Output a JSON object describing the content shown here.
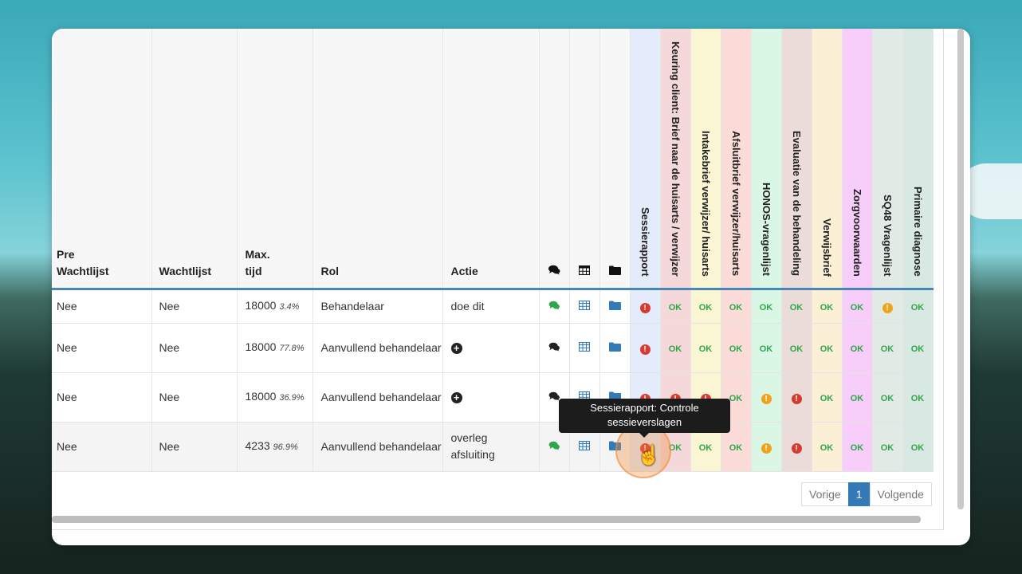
{
  "headers": {
    "pre_wachtlijst": "Pre Wachtlijst",
    "wachtlijst": "Wachtlijst",
    "max_tijd": "Max. tijd",
    "rol": "Rol",
    "actie": "Actie",
    "icons": [
      "comments-icon",
      "table-icon",
      "folder-icon"
    ],
    "checks": [
      {
        "label": "Sessierapport",
        "bg": "#e4ebfa"
      },
      {
        "label": "Keuring client: Brief naar de huisarts / verwijzer",
        "bg": "#f4d8da"
      },
      {
        "label": "Intakebrief verwijzer/ huisarts",
        "bg": "#faf6d3"
      },
      {
        "label": "Afsluitbrief verwijzer/huisarts",
        "bg": "#fbdcd9"
      },
      {
        "label": "HONOS-vragenlijst",
        "bg": "#d9f7e4"
      },
      {
        "label": "Evaluatie van de behandeling",
        "bg": "#ecdcd9"
      },
      {
        "label": "Verwijsbrief",
        "bg": "#fbefd6"
      },
      {
        "label": "Zorgvoorwaarden",
        "bg": "#f7cdfa"
      },
      {
        "label": "SQ48 Vragenlijst",
        "bg": "#e2eae6"
      },
      {
        "label": "Primaire diagnose",
        "bg": "#d8e8e2"
      }
    ]
  },
  "rows": [
    {
      "pre": "Nee",
      "wacht": "Nee",
      "tijd": "18000",
      "pct": "3.4%",
      "rol": "Behandelaar",
      "actie": "doe dit",
      "actie_icon": "",
      "chat_color": "#2fa64a",
      "status": [
        "err",
        "ok",
        "ok",
        "ok",
        "ok",
        "ok",
        "ok",
        "ok",
        "warn",
        "ok"
      ]
    },
    {
      "pre": "Nee",
      "wacht": "Nee",
      "tijd": "18000",
      "pct": "77.8%",
      "rol": "Aanvullend behandelaar",
      "actie": "",
      "actie_icon": "plus-circle-icon",
      "chat_color": "#222",
      "status": [
        "err",
        "ok",
        "ok",
        "ok",
        "ok",
        "ok",
        "ok",
        "ok",
        "ok",
        "ok"
      ]
    },
    {
      "pre": "Nee",
      "wacht": "Nee",
      "tijd": "18000",
      "pct": "36.9%",
      "rol": "Aanvullend behandelaar",
      "actie": "",
      "actie_icon": "plus-circle-icon",
      "chat_color": "#222",
      "status": [
        "err",
        "err",
        "err",
        "ok",
        "warn",
        "err",
        "ok",
        "ok",
        "ok",
        "ok"
      ]
    },
    {
      "pre": "Nee",
      "wacht": "Nee",
      "tijd": "4233",
      "pct": "96.9%",
      "rol": "Aanvullend behandelaar",
      "actie": "overleg afsluiting",
      "actie_icon": "",
      "chat_color": "#2fa64a",
      "status": [
        "err",
        "ok",
        "ok",
        "ok",
        "warn",
        "err",
        "ok",
        "ok",
        "ok",
        "ok"
      ]
    }
  ],
  "ok_label": "OK",
  "pagination": {
    "prev": "Vorige",
    "current": "1",
    "next": "Volgende"
  },
  "tooltip": "Sessierapport: Controle sessieverslagen"
}
